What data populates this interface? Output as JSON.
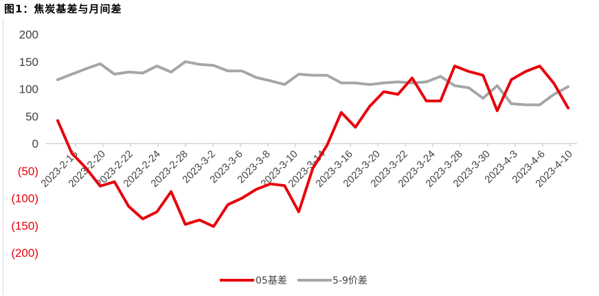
{
  "figure": {
    "title": "图1：焦炭基差与月间差"
  },
  "chart_data": {
    "type": "line",
    "ylim": [
      -200,
      200
    ],
    "yticks": [
      200,
      150,
      100,
      50,
      0,
      -50,
      -100,
      -150,
      -200
    ],
    "ytick_labels": [
      "200",
      "150",
      "100",
      "50",
      "0",
      "(50)",
      "(100)",
      "(150)",
      "(200)"
    ],
    "grid": false,
    "legend_position": "bottom",
    "x_tick_labels": [
      "2023-2-16",
      "2023-2-20",
      "2023-2-22",
      "2023-2-24",
      "2023-2-28",
      "2023-3-2",
      "2023-3-6",
      "2023-3-8",
      "2023-3-10",
      "2023-3-14",
      "2023-3-16",
      "2023-3-20",
      "2023-3-22",
      "2023-3-24",
      "2023-3-28",
      "2023-3-30",
      "2023-4-3",
      "2023-4-6",
      "2023-4-10"
    ],
    "series": [
      {
        "name": "05基差",
        "color": "#e8000b",
        "values": [
          42,
          -18,
          -45,
          -78,
          -70,
          -115,
          -138,
          -125,
          -88,
          -148,
          -140,
          -152,
          -112,
          -100,
          -84,
          -74,
          -77,
          -125,
          -45,
          -3,
          57,
          30,
          68,
          95,
          90,
          120,
          78,
          78,
          142,
          132,
          125,
          60,
          117,
          132,
          142,
          110,
          65
        ]
      },
      {
        "name": "5-9价差",
        "color": "#a6a6a6",
        "values": [
          117,
          127,
          137,
          146,
          127,
          131,
          129,
          142,
          131,
          150,
          145,
          143,
          133,
          133,
          121,
          115,
          108,
          127,
          125,
          125,
          111,
          111,
          108,
          111,
          113,
          111,
          113,
          123,
          106,
          102,
          83,
          106,
          73,
          71,
          71,
          90,
          104
        ]
      }
    ]
  }
}
